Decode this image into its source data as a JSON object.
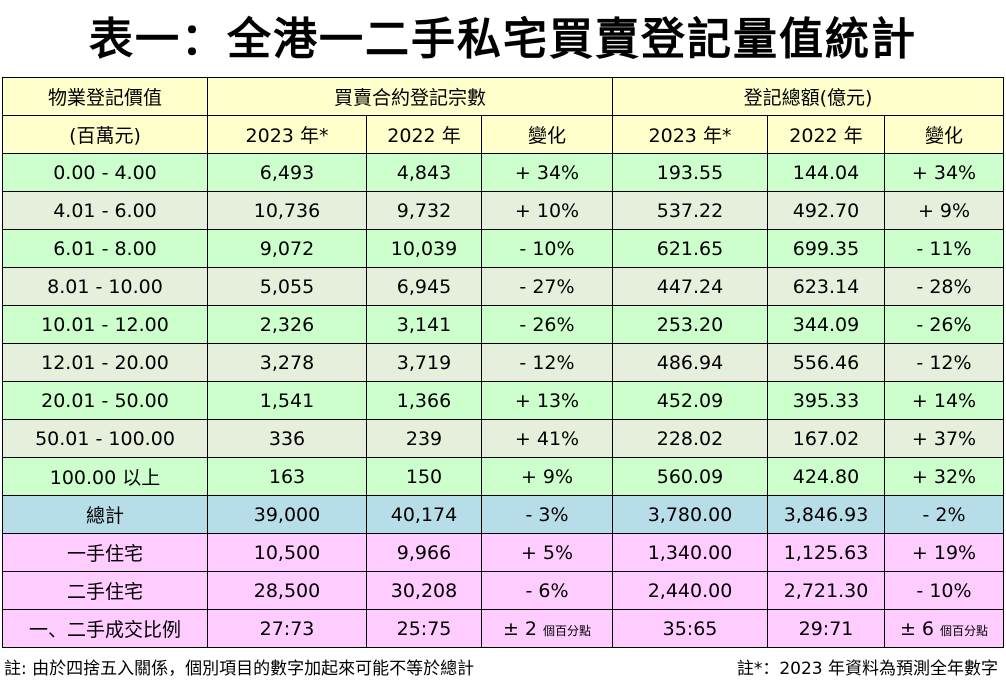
{
  "title": "表一：全港一二手私宅買賣登記量值統計",
  "header": {
    "col0_line1": "物業登記價值",
    "col0_line2": "(百萬元)",
    "group1": "買賣合約登記宗數",
    "group2": "登記總額(億元)",
    "y2023": "2023 年*",
    "y2022": "2022 年",
    "change": "變化"
  },
  "rows": [
    {
      "range": "0.00 - 4.00",
      "c23": "6,493",
      "c22": "4,843",
      "cchg": "+ 34%",
      "v23": "193.55",
      "v22": "144.04",
      "vchg": "+ 34%"
    },
    {
      "range": "4.01 - 6.00",
      "c23": "10,736",
      "c22": "9,732",
      "cchg": "+ 10%",
      "v23": "537.22",
      "v22": "492.70",
      "vchg": "+ 9%"
    },
    {
      "range": "6.01 - 8.00",
      "c23": "9,072",
      "c22": "10,039",
      "cchg": "- 10%",
      "v23": "621.65",
      "v22": "699.35",
      "vchg": "- 11%"
    },
    {
      "range": "8.01 - 10.00",
      "c23": "5,055",
      "c22": "6,945",
      "cchg": "- 27%",
      "v23": "447.24",
      "v22": "623.14",
      "vchg": "- 28%"
    },
    {
      "range": "10.01 - 12.00",
      "c23": "2,326",
      "c22": "3,141",
      "cchg": "- 26%",
      "v23": "253.20",
      "v22": "344.09",
      "vchg": "- 26%"
    },
    {
      "range": "12.01 - 20.00",
      "c23": "3,278",
      "c22": "3,719",
      "cchg": "- 12%",
      "v23": "486.94",
      "v22": "556.46",
      "vchg": "- 12%"
    },
    {
      "range": "20.01 - 50.00",
      "c23": "1,541",
      "c22": "1,366",
      "cchg": "+ 13%",
      "v23": "452.09",
      "v22": "395.33",
      "vchg": "+ 14%"
    },
    {
      "range": "50.01 - 100.00",
      "c23": "336",
      "c22": "239",
      "cchg": "+ 41%",
      "v23": "228.02",
      "v22": "167.02",
      "vchg": "+ 37%"
    },
    {
      "range": "100.00  以上",
      "c23": "163",
      "c22": "150",
      "cchg": "+ 9%",
      "v23": "560.09",
      "v22": "424.80",
      "vchg": "+ 32%"
    }
  ],
  "total": {
    "range": "總計",
    "c23": "39,000",
    "c22": "40,174",
    "cchg": "- 3%",
    "v23": "3,780.00",
    "v22": "3,846.93",
    "vchg": "- 2%"
  },
  "primary": {
    "range": "一手住宅",
    "c23": "10,500",
    "c22": "9,966",
    "cchg": "+ 5%",
    "v23": "1,340.00",
    "v22": "1,125.63",
    "vchg": "+ 19%"
  },
  "secondary": {
    "range": "二手住宅",
    "c23": "28,500",
    "c22": "30,208",
    "cchg": "- 6%",
    "v23": "2,440.00",
    "v22": "2,721.30",
    "vchg": "- 10%"
  },
  "ratio": {
    "range": "一、二手成交比例",
    "c23": "27:73",
    "c22": "25:75",
    "cchg": "± 2",
    "cchg_unit": "個百分點",
    "v23": "35:65",
    "v22": "29:71",
    "vchg": "± 6",
    "vchg_unit": "個百分點"
  },
  "footnotes": {
    "left": "註: 由於四捨五入關係，個別項目的數字加起來可能不等於總計",
    "right": "註*：2023 年資料為預測全年數字"
  },
  "colors": {
    "header": "#FFFFCC",
    "green": "#CCFFCC",
    "alt": "#E6EEDC",
    "total": "#B7DEE8",
    "pink": "#FFCCFF"
  }
}
